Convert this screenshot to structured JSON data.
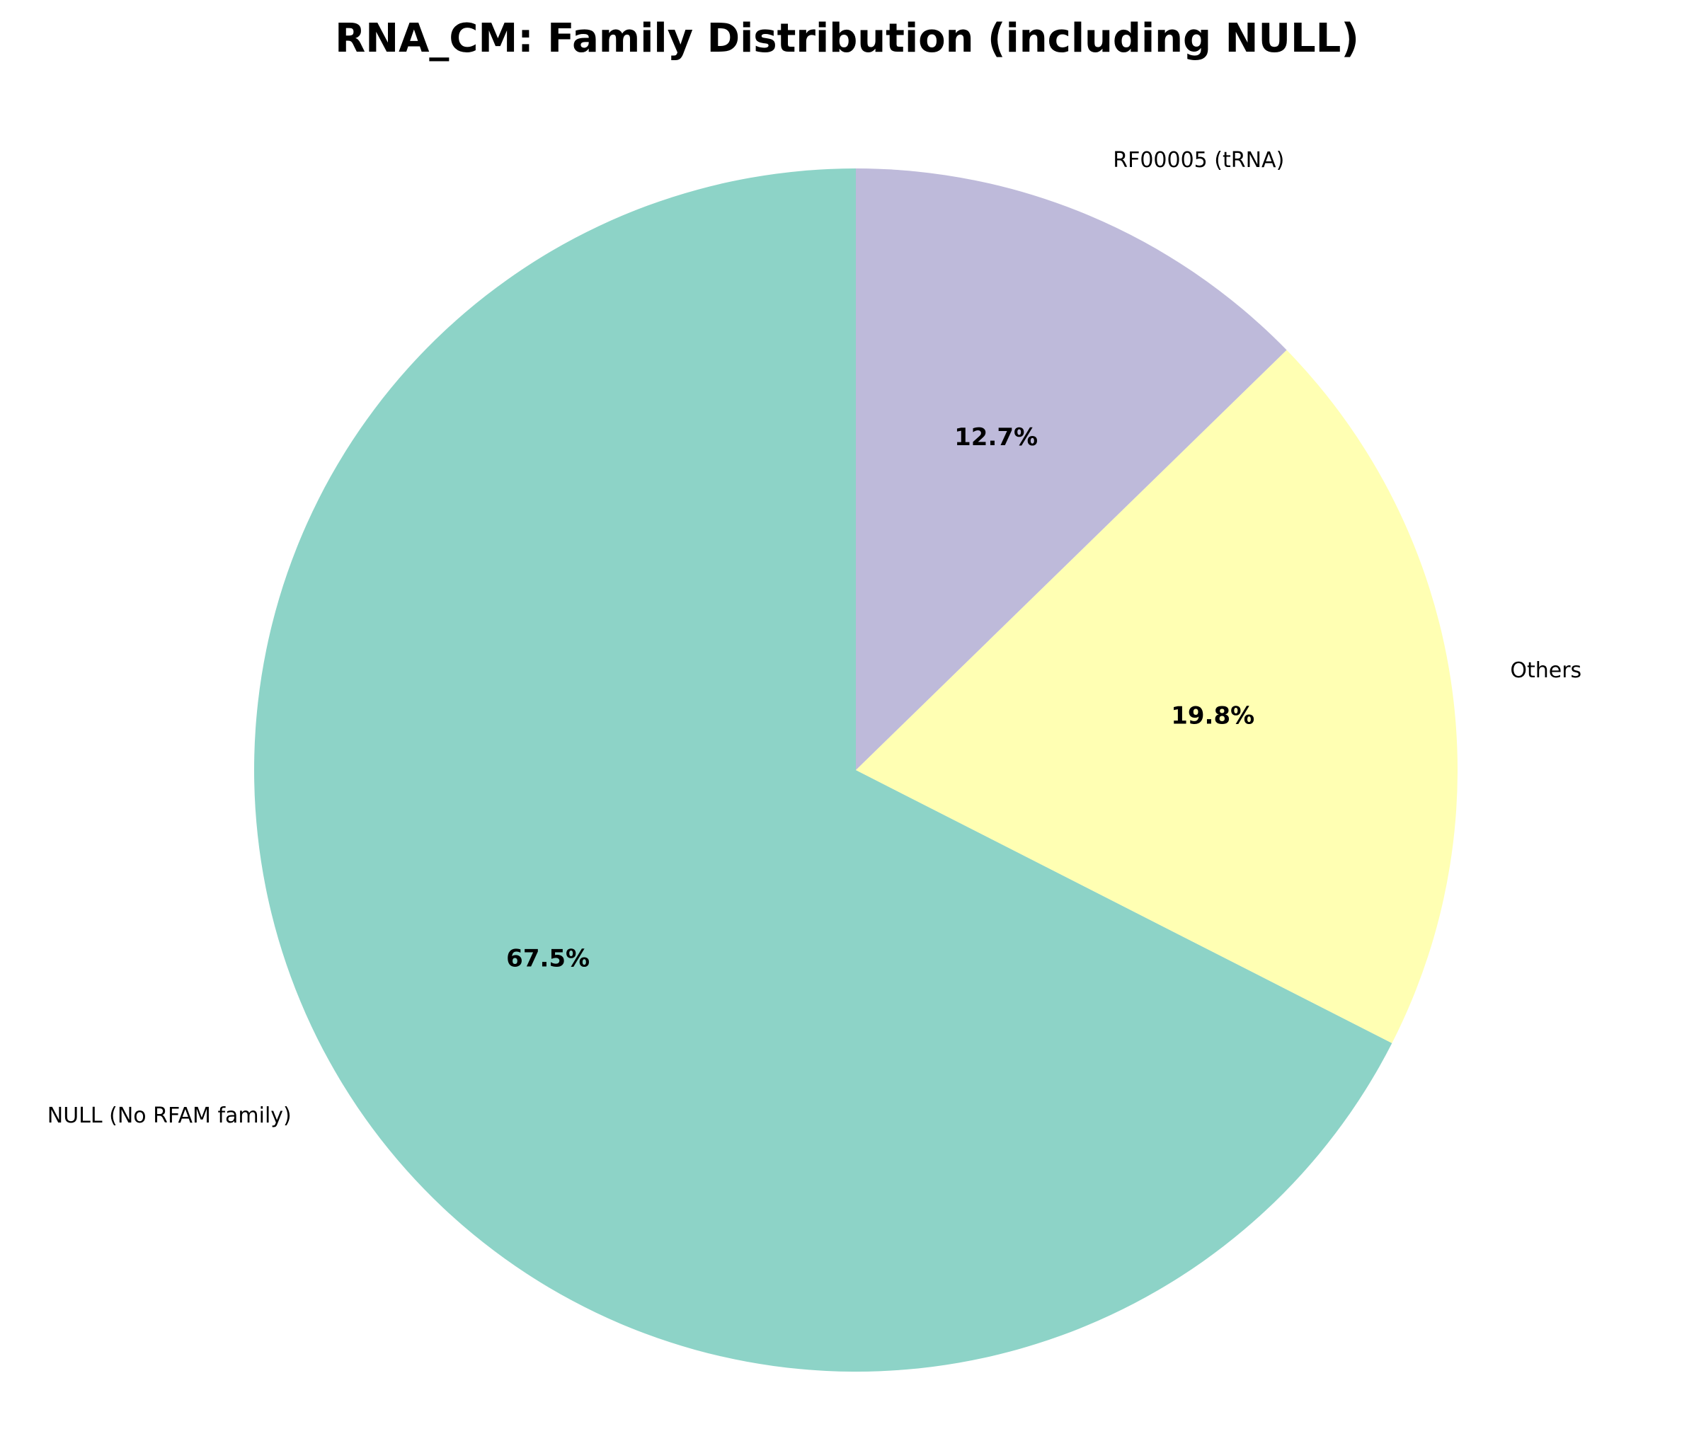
{
  "chart_data": {
    "type": "pie",
    "title": "RNA_CM: Family Distribution (including NULL)",
    "slices": [
      {
        "label": "NULL (No RFAM family)",
        "value": 67.5,
        "percent_label": "67.5%",
        "color": "#8dd3c7"
      },
      {
        "label": "Others",
        "value": 19.8,
        "percent_label": "19.8%",
        "color": "#ffffb3"
      },
      {
        "label": "RF00005 (tRNA)",
        "value": 12.7,
        "percent_label": "12.7%",
        "color": "#bebada"
      }
    ],
    "start_angle_deg": 90,
    "direction": "counterclockwise",
    "legend": "none"
  }
}
